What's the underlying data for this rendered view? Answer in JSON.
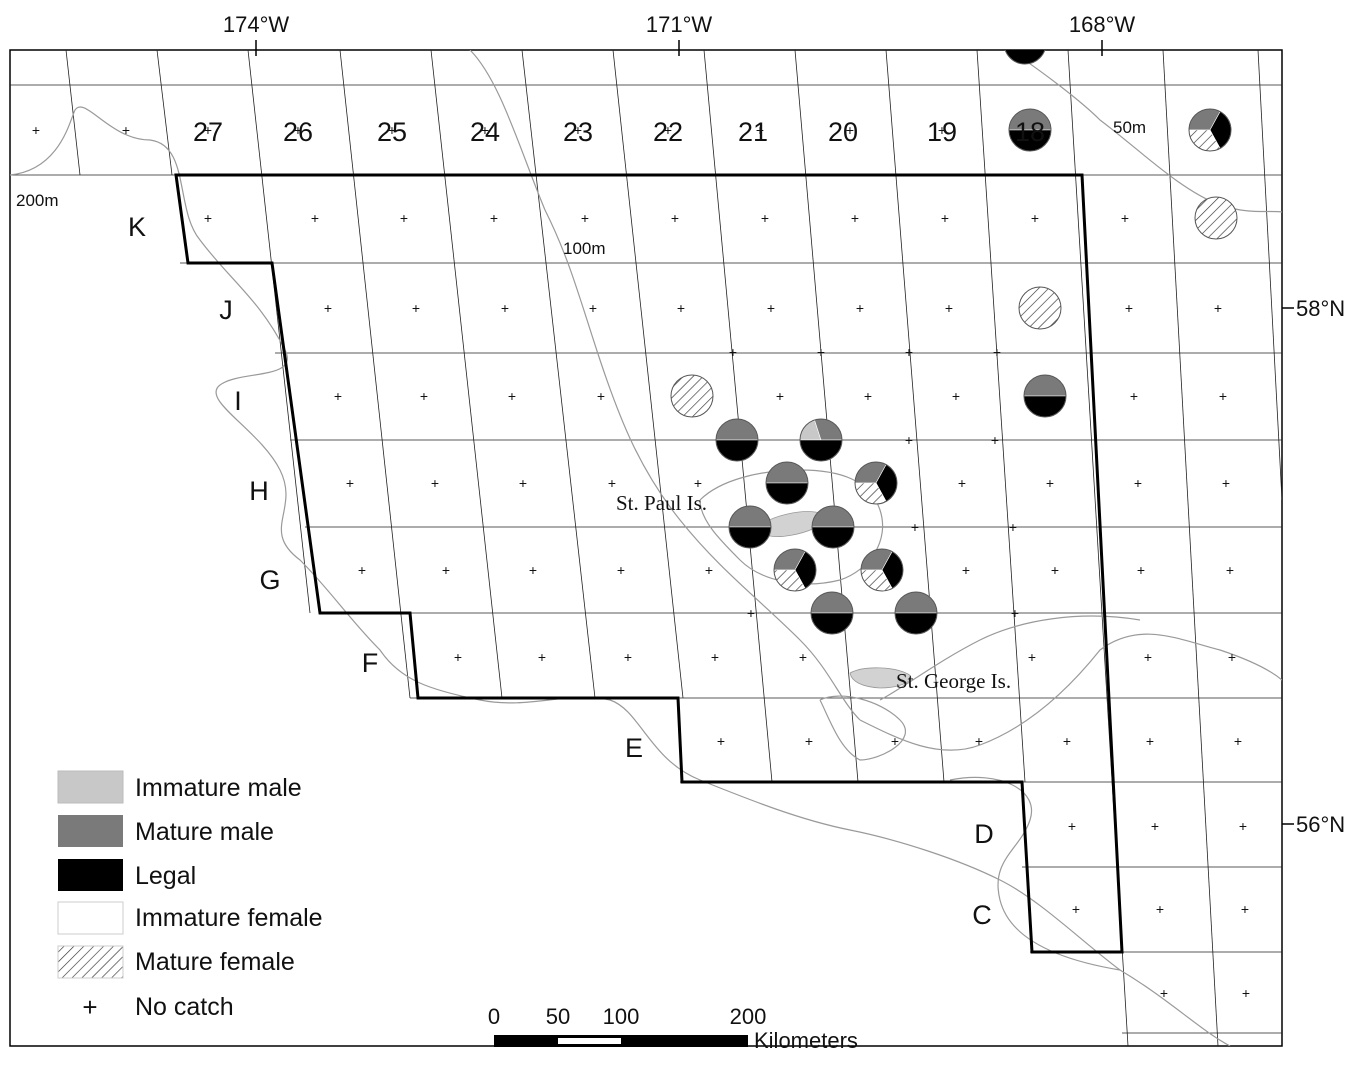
{
  "axes": {
    "longitudes": [
      "174°W",
      "171°W",
      "168°W"
    ],
    "latitudes": [
      "58°N",
      "56°N"
    ]
  },
  "columns": [
    "27",
    "26",
    "25",
    "24",
    "23",
    "22",
    "21",
    "20",
    "19",
    "18"
  ],
  "rows": [
    "K",
    "J",
    "I",
    "H",
    "G",
    "F",
    "E",
    "D",
    "C"
  ],
  "depth_labels": [
    "200m",
    "100m",
    "50m"
  ],
  "places": [
    "St. Paul Is.",
    "St. George Is."
  ],
  "legend": [
    {
      "label": "Immature male",
      "color": "#c8c8c8",
      "pattern": "solid"
    },
    {
      "label": "Mature male",
      "color": "#7a7a7a",
      "pattern": "solid"
    },
    {
      "label": "Legal",
      "color": "#000000",
      "pattern": "solid"
    },
    {
      "label": "Immature female",
      "color": "#ffffff",
      "pattern": "solid"
    },
    {
      "label": "Mature female",
      "color": "#ffffff",
      "pattern": "hatch"
    },
    {
      "label": "No catch",
      "symbol": "+"
    }
  ],
  "scale_bar": {
    "ticks": [
      "0",
      "50",
      "100",
      "200"
    ],
    "unit": "Kilometers"
  },
  "catches": [
    {
      "station": "18-top",
      "shares": {
        "mature_male": 0.5,
        "legal": 0.5
      }
    },
    {
      "station": "18",
      "shares": {
        "mature_male": 0.5,
        "legal": 0.5
      }
    },
    {
      "station": "east-top",
      "shares": {
        "mature_male": 0.33,
        "legal": 0.34,
        "mature_female": 0.33
      }
    },
    {
      "station": "east-K",
      "shares": {
        "mature_female": 1.0
      }
    },
    {
      "station": "J-19",
      "shares": {
        "mature_female": 1.0
      }
    },
    {
      "station": "I-18",
      "shares": {
        "mature_male": 0.5,
        "legal": 0.5
      }
    },
    {
      "station": "I-22",
      "shares": {
        "mature_female": 1.0
      }
    },
    {
      "station": "H-21",
      "shares": {
        "mature_male": 0.5,
        "legal": 0.5
      }
    },
    {
      "station": "H-20",
      "shares": {
        "immature_male": 0.2,
        "mature_male": 0.3,
        "legal": 0.5
      }
    },
    {
      "station": "H2-21",
      "shares": {
        "mature_male": 0.5,
        "legal": 0.5
      }
    },
    {
      "station": "H2-20",
      "shares": {
        "mature_male": 0.33,
        "legal": 0.34,
        "mature_female": 0.33
      }
    },
    {
      "station": "G-21",
      "shares": {
        "mature_male": 0.5,
        "legal": 0.5
      }
    },
    {
      "station": "G-20",
      "shares": {
        "mature_male": 0.5,
        "legal": 0.5
      }
    },
    {
      "station": "G2-21",
      "shares": {
        "mature_male": 0.33,
        "legal": 0.34,
        "mature_female": 0.33
      }
    },
    {
      "station": "G2-20",
      "shares": {
        "mature_male": 0.33,
        "legal": 0.34,
        "mature_female": 0.33
      }
    },
    {
      "station": "F-21",
      "shares": {
        "mature_male": 0.5,
        "legal": 0.5
      }
    },
    {
      "station": "F-20",
      "shares": {
        "mature_male": 0.5,
        "legal": 0.5
      }
    }
  ]
}
